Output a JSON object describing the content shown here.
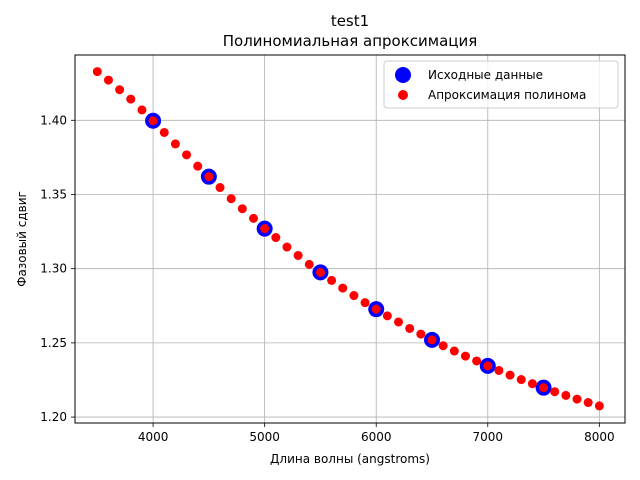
{
  "chart_data": {
    "type": "scatter",
    "title": "test1",
    "subtitle": "Полиномиальная апроксимация",
    "xlabel": "Длина волны (angstroms)",
    "ylabel": "Фазовый сдвиг",
    "xlim": [
      3300,
      8230
    ],
    "ylim": [
      1.196,
      1.444
    ],
    "xticks": [
      4000,
      5000,
      6000,
      7000,
      8000
    ],
    "yticks": [
      1.2,
      1.25,
      1.3,
      1.35,
      1.4
    ],
    "xtick_labels": [
      "4000",
      "5000",
      "6000",
      "7000",
      "8000"
    ],
    "ytick_labels": [
      "1.20",
      "1.25",
      "1.30",
      "1.35",
      "1.40"
    ],
    "grid": true,
    "legend_position": "top-right",
    "series": [
      {
        "name": "Исходные данные",
        "color": "#0000ff",
        "x": [
          4000,
          4500,
          5000,
          5500,
          6000,
          6500,
          7000,
          7500
        ],
        "y": [
          1.3997,
          1.362,
          1.327,
          1.2975,
          1.2727,
          1.252,
          1.2345,
          1.2198
        ]
      },
      {
        "name": "Апроксимация полинома",
        "color": "#ff0000",
        "x": [
          3500,
          3600,
          3700,
          3800,
          3900,
          4000,
          4100,
          4200,
          4300,
          4400,
          4500,
          4600,
          4700,
          4800,
          4900,
          5000,
          5100,
          5200,
          5300,
          5400,
          5500,
          5600,
          5700,
          5800,
          5900,
          6000,
          6100,
          6200,
          6300,
          6400,
          6500,
          6600,
          6700,
          6800,
          6900,
          7000,
          7100,
          7200,
          7300,
          7400,
          7500,
          7600,
          7700,
          7800,
          7900,
          8000
        ],
        "y": [
          1.4328,
          1.4271,
          1.4206,
          1.4143,
          1.407,
          1.3997,
          1.3918,
          1.3841,
          1.3767,
          1.3691,
          1.362,
          1.3547,
          1.3472,
          1.3404,
          1.3339,
          1.327,
          1.321,
          1.3146,
          1.3089,
          1.3029,
          1.2975,
          1.2921,
          1.2869,
          1.2819,
          1.2771,
          1.2727,
          1.2682,
          1.2641,
          1.2597,
          1.2559,
          1.252,
          1.2481,
          1.2445,
          1.2411,
          1.2378,
          1.2345,
          1.2314,
          1.2283,
          1.2253,
          1.2225,
          1.2198,
          1.2171,
          1.2146,
          1.2121,
          1.2098,
          1.2075
        ]
      }
    ]
  }
}
